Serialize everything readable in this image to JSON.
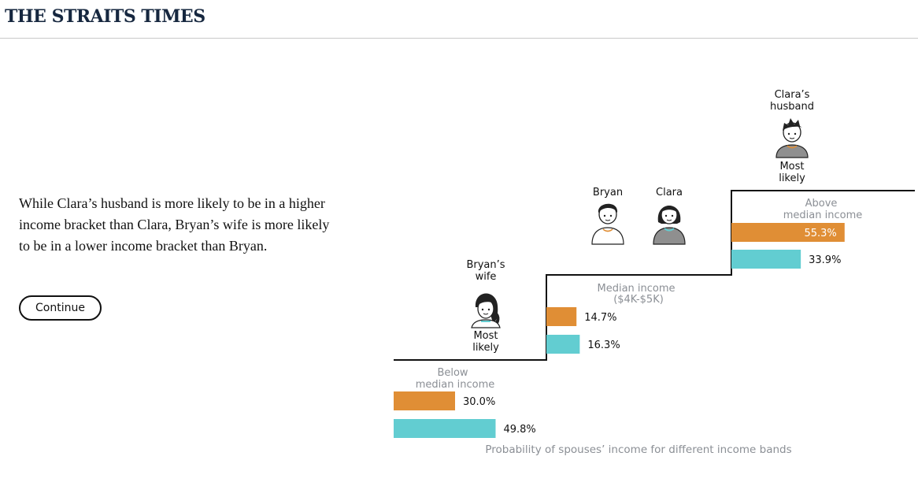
{
  "header": {
    "brand": "THE STRAITS TIMES"
  },
  "story": {
    "text": "While Clara’s husband is more likely to be in a higher income bracket than Clara, Bryan’s wife is more likely to be in a lower income bracket than Bryan.",
    "continue_label": "Continue"
  },
  "people": {
    "bryans_wife": {
      "line1": "Bryan’s",
      "line2": "wife",
      "note1": "Most",
      "note2": "likely"
    },
    "bryan": {
      "label": "Bryan"
    },
    "clara": {
      "label": "Clara"
    },
    "claras_husband": {
      "line1": "Clara’s",
      "line2": "husband",
      "note1": "Most",
      "note2": "likely"
    }
  },
  "colors": {
    "orange": "#e08e35",
    "teal": "#62cdd1",
    "muted_text": "#8b8f95",
    "stair": "#111111"
  },
  "chart_data": {
    "type": "bar",
    "caption": "Probability of spouses’ income for different income bands",
    "categories": [
      {
        "line1": "Below",
        "line2": "median income"
      },
      {
        "line1": "Median income",
        "line2": "($4K-$5K)"
      },
      {
        "line1": "Above",
        "line2": "median income"
      }
    ],
    "series": [
      {
        "color": "#e08e35",
        "values": [
          30.0,
          14.7,
          55.3
        ],
        "labels": [
          "30.0%",
          "14.7%",
          "55.3%"
        ]
      },
      {
        "color": "#62cdd1",
        "values": [
          49.8,
          16.3,
          33.9
        ],
        "labels": [
          "49.8%",
          "16.3%",
          "33.9%"
        ]
      }
    ]
  }
}
